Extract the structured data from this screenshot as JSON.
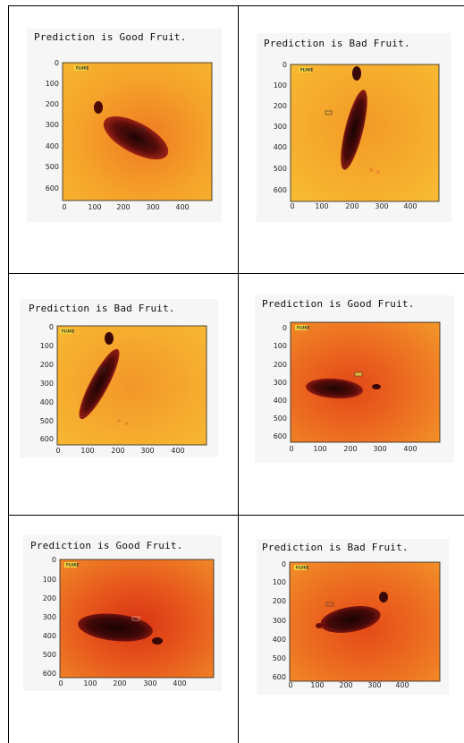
{
  "panels": [
    {
      "title": "Prediction is Good Fruit.",
      "cam_label": "FLUKE",
      "yticks": [
        "0",
        "100",
        "200",
        "300",
        "400",
        "500",
        "600"
      ],
      "xticks": [
        "0",
        "100",
        "200",
        "300",
        "400"
      ]
    },
    {
      "title": "Prediction is Bad Fruit.",
      "cam_label": "FLUKE",
      "yticks": [
        "0",
        "100",
        "200",
        "300",
        "400",
        "500",
        "600"
      ],
      "xticks": [
        "0",
        "100",
        "200",
        "300",
        "400"
      ]
    },
    {
      "title": "Prediction is Bad Fruit.",
      "cam_label": "FLUKE",
      "yticks": [
        "0",
        "100",
        "200",
        "300",
        "400",
        "500",
        "600"
      ],
      "xticks": [
        "0",
        "100",
        "200",
        "300",
        "400"
      ]
    },
    {
      "title": "Prediction is Good Fruit.",
      "cam_label": "FLUKE",
      "yticks": [
        "0",
        "100",
        "200",
        "300",
        "400",
        "500",
        "600"
      ],
      "xticks": [
        "0",
        "100",
        "200",
        "300",
        "400"
      ]
    },
    {
      "title": "Prediction is Good Fruit.",
      "cam_label": "FLUKE",
      "yticks": [
        "0",
        "100",
        "200",
        "300",
        "400",
        "500",
        "600"
      ],
      "xticks": [
        "0",
        "100",
        "200",
        "300",
        "400"
      ]
    },
    {
      "title": "Prediction is Bad Fruit.",
      "cam_label": "FLUKE",
      "yticks": [
        "0",
        "100",
        "200",
        "300",
        "400",
        "500",
        "600"
      ],
      "xticks": [
        "0",
        "100",
        "200",
        "300",
        "400"
      ]
    }
  ],
  "colors": {
    "bg_warm": "#f6a62a",
    "bg_hot": "#e9591b",
    "fruit_dark": "#2a0808",
    "fruit_mid": "#9a1a10",
    "grid_line": "#000000"
  }
}
